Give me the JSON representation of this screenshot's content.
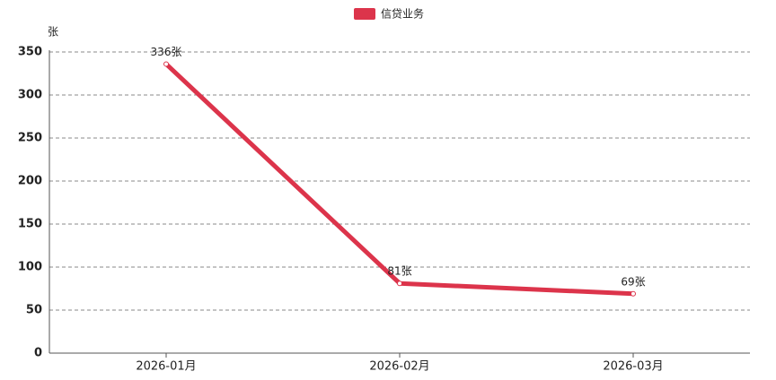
{
  "chart_data": {
    "type": "line",
    "y_label": "张",
    "categories": [
      "2026-01月",
      "2026-02月",
      "2026-03月"
    ],
    "series": [
      {
        "name": "信贷业务",
        "color": "#dc344b",
        "values": [
          336,
          81,
          69
        ],
        "value_labels": [
          "336张",
          "81张",
          "69张"
        ]
      }
    ],
    "ylim": [
      0,
      350
    ],
    "yticks": [
      0,
      50,
      100,
      150,
      200,
      250,
      300,
      350
    ],
    "grid": true,
    "legend": "top"
  }
}
